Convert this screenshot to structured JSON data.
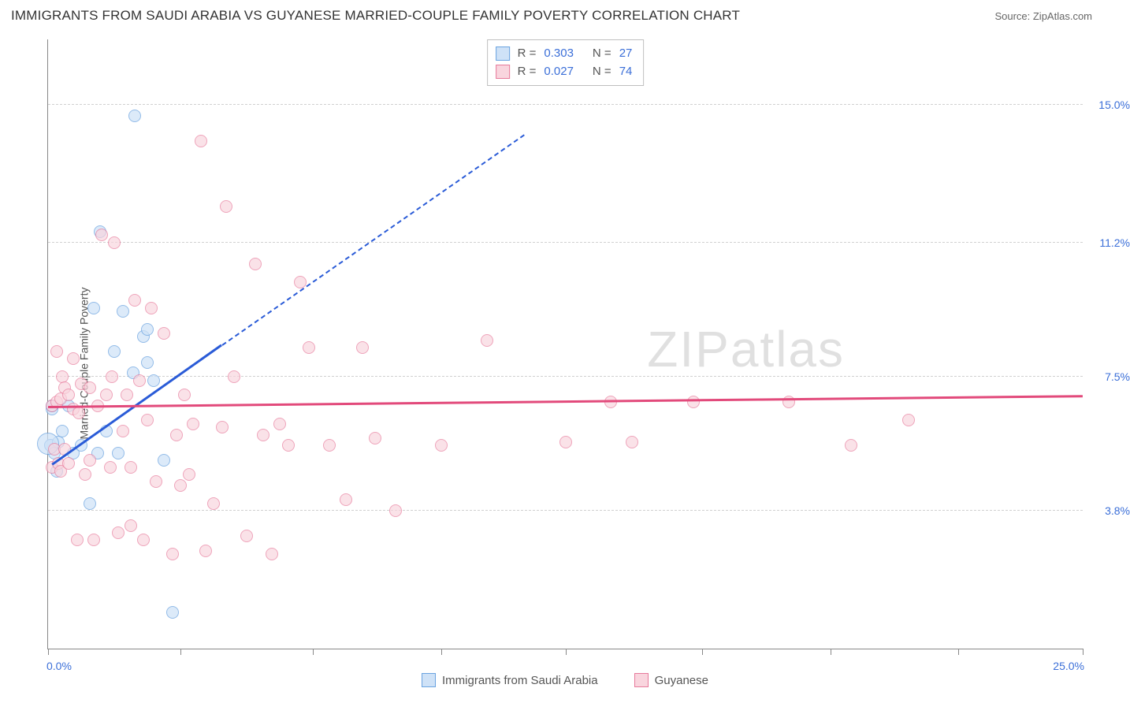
{
  "title": "IMMIGRANTS FROM SAUDI ARABIA VS GUYANESE MARRIED-COUPLE FAMILY POVERTY CORRELATION CHART",
  "source": "Source: ZipAtlas.com",
  "watermark": "ZIPatlas",
  "chart": {
    "type": "scatter",
    "ylabel": "Married-Couple Family Poverty",
    "xlim": [
      0,
      25
    ],
    "ylim": [
      0,
      16.8
    ],
    "xticks": [
      0,
      3.2,
      6.4,
      9.5,
      12.5,
      15.8,
      18.9,
      22.0,
      25.0
    ],
    "yticks": [
      3.8,
      7.5,
      11.2,
      15.0
    ],
    "ytick_labels": [
      "3.8%",
      "7.5%",
      "11.2%",
      "15.0%"
    ],
    "x_min_label": "0.0%",
    "x_max_label": "25.0%",
    "background_color": "#ffffff",
    "grid_color": "#d0d0d0",
    "axis_color": "#888888",
    "value_color": "#3b6fd8",
    "label_fontsize": 14,
    "title_fontsize": 17,
    "series": [
      {
        "name": "Immigrants from Saudi Arabia",
        "fill": "#cfe2f7",
        "stroke": "#6aa3e0",
        "line_color": "#2a5bd7",
        "opacity": 0.72,
        "r": 0.303,
        "n": 27,
        "trend": {
          "x1": 0.1,
          "y1": 5.1,
          "x2": 4.2,
          "y2": 8.4,
          "dash_to_x": 11.5,
          "dash_to_y": 14.2
        },
        "points": [
          [
            0.05,
            5.6
          ],
          [
            0.05,
            5.6
          ],
          [
            0.1,
            6.6
          ],
          [
            0.1,
            6.7
          ],
          [
            0.15,
            5.4
          ],
          [
            0.2,
            4.9
          ],
          [
            0.25,
            5.7
          ],
          [
            0.35,
            6.0
          ],
          [
            0.5,
            6.7
          ],
          [
            0.6,
            5.4
          ],
          [
            0.8,
            5.6
          ],
          [
            1.0,
            4.0
          ],
          [
            1.1,
            9.4
          ],
          [
            1.2,
            5.4
          ],
          [
            1.25,
            11.5
          ],
          [
            1.4,
            6.0
          ],
          [
            1.6,
            8.2
          ],
          [
            1.7,
            5.4
          ],
          [
            1.8,
            9.3
          ],
          [
            2.05,
            7.6
          ],
          [
            2.1,
            14.7
          ],
          [
            2.3,
            8.6
          ],
          [
            2.4,
            7.9
          ],
          [
            2.4,
            8.8
          ],
          [
            2.55,
            7.4
          ],
          [
            2.8,
            5.2
          ],
          [
            3.0,
            1.0
          ]
        ],
        "big_points": [
          [
            0.0,
            5.65
          ]
        ]
      },
      {
        "name": "Guyanese",
        "fill": "#f9d5de",
        "stroke": "#e77a9b",
        "line_color": "#e24a7b",
        "opacity": 0.68,
        "r": 0.027,
        "n": 74,
        "trend": {
          "x1": 0.0,
          "y1": 6.7,
          "x2": 25.0,
          "y2": 7.0
        },
        "points": [
          [
            0.1,
            5.0
          ],
          [
            0.1,
            6.7
          ],
          [
            0.15,
            5.5
          ],
          [
            0.2,
            6.8
          ],
          [
            0.2,
            8.2
          ],
          [
            0.25,
            5.1
          ],
          [
            0.3,
            6.9
          ],
          [
            0.3,
            4.9
          ],
          [
            0.35,
            7.5
          ],
          [
            0.4,
            7.2
          ],
          [
            0.4,
            5.5
          ],
          [
            0.5,
            7.0
          ],
          [
            0.5,
            5.1
          ],
          [
            0.6,
            6.6
          ],
          [
            0.6,
            8.0
          ],
          [
            0.7,
            3.0
          ],
          [
            0.75,
            6.5
          ],
          [
            0.8,
            7.3
          ],
          [
            0.9,
            4.8
          ],
          [
            1.0,
            7.2
          ],
          [
            1.0,
            5.2
          ],
          [
            1.1,
            3.0
          ],
          [
            1.2,
            6.7
          ],
          [
            1.3,
            11.4
          ],
          [
            1.4,
            7.0
          ],
          [
            1.5,
            5.0
          ],
          [
            1.55,
            7.5
          ],
          [
            1.6,
            11.2
          ],
          [
            1.7,
            3.2
          ],
          [
            1.8,
            6.0
          ],
          [
            1.9,
            7.0
          ],
          [
            2.0,
            3.4
          ],
          [
            2.0,
            5.0
          ],
          [
            2.1,
            9.6
          ],
          [
            2.2,
            7.4
          ],
          [
            2.3,
            3.0
          ],
          [
            2.4,
            6.3
          ],
          [
            2.5,
            9.4
          ],
          [
            2.6,
            4.6
          ],
          [
            2.8,
            8.7
          ],
          [
            3.0,
            2.6
          ],
          [
            3.1,
            5.9
          ],
          [
            3.2,
            4.5
          ],
          [
            3.3,
            7.0
          ],
          [
            3.4,
            4.8
          ],
          [
            3.5,
            6.2
          ],
          [
            3.7,
            14.0
          ],
          [
            3.8,
            2.7
          ],
          [
            4.0,
            4.0
          ],
          [
            4.2,
            6.1
          ],
          [
            4.3,
            12.2
          ],
          [
            4.5,
            7.5
          ],
          [
            4.8,
            3.1
          ],
          [
            5.0,
            10.6
          ],
          [
            5.2,
            5.9
          ],
          [
            5.4,
            2.6
          ],
          [
            5.6,
            6.2
          ],
          [
            5.8,
            5.6
          ],
          [
            6.1,
            10.1
          ],
          [
            6.3,
            8.3
          ],
          [
            6.8,
            5.6
          ],
          [
            7.2,
            4.1
          ],
          [
            7.6,
            8.3
          ],
          [
            7.9,
            5.8
          ],
          [
            8.4,
            3.8
          ],
          [
            9.5,
            5.6
          ],
          [
            10.6,
            8.5
          ],
          [
            12.5,
            5.7
          ],
          [
            13.6,
            6.8
          ],
          [
            14.1,
            5.7
          ],
          [
            15.6,
            6.8
          ],
          [
            19.4,
            5.6
          ],
          [
            20.8,
            6.3
          ],
          [
            17.9,
            6.8
          ]
        ]
      }
    ]
  },
  "bottom_legend": [
    {
      "label": "Immigrants from Saudi Arabia",
      "fill": "#cfe2f7",
      "stroke": "#6aa3e0"
    },
    {
      "label": "Guyanese",
      "fill": "#f9d5de",
      "stroke": "#e77a9b"
    }
  ]
}
